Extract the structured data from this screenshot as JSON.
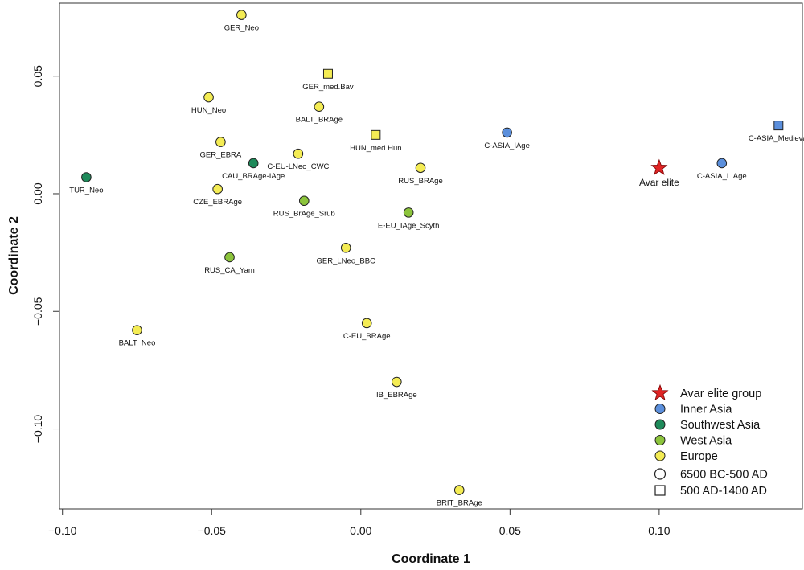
{
  "chart_data": {
    "type": "scatter",
    "xlabel": "Coordinate 1",
    "ylabel": "Coordinate 2",
    "xlim": [
      -0.101,
      0.148
    ],
    "ylim": [
      -0.134,
      0.081
    ],
    "xticks": [
      -0.1,
      -0.05,
      0.0,
      0.05,
      0.1
    ],
    "xtick_labels": [
      "−0.10",
      "−0.05",
      "0.00",
      "0.05",
      "0.10"
    ],
    "yticks": [
      -0.1,
      -0.05,
      0.0,
      0.05
    ],
    "ytick_labels": [
      "−0.10",
      "−0.05",
      "0.00",
      "0.05"
    ],
    "grid": false,
    "legend_position": "bottom-right",
    "groups": [
      {
        "name": "Avar elite group",
        "color": "#e02424",
        "shape": "star"
      },
      {
        "name": "Inner Asia",
        "color": "#5b8fdc",
        "shape": "circle"
      },
      {
        "name": "Southwest Asia",
        "color": "#1e8a5a",
        "shape": "circle"
      },
      {
        "name": "West Asia",
        "color": "#8cc43c",
        "shape": "circle"
      },
      {
        "name": "Europe",
        "color": "#f4ec54",
        "shape": "circle"
      }
    ],
    "period_legend": [
      {
        "label": "6500 BC-500 AD",
        "shape": "circle"
      },
      {
        "label": "500 AD-1400 AD",
        "shape": "square"
      }
    ],
    "points": [
      {
        "label": "GER_Neo",
        "x": -0.04,
        "y": 0.076,
        "group": "Europe",
        "shape": "circle"
      },
      {
        "label": "GER_med.Bav",
        "x": -0.011,
        "y": 0.051,
        "group": "Europe",
        "shape": "square"
      },
      {
        "label": "HUN_Neo",
        "x": -0.051,
        "y": 0.041,
        "group": "Europe",
        "shape": "circle"
      },
      {
        "label": "BALT_BRAge",
        "x": -0.014,
        "y": 0.037,
        "group": "Europe",
        "shape": "circle"
      },
      {
        "label": "HUN_med.Hun",
        "x": 0.005,
        "y": 0.025,
        "group": "Europe",
        "shape": "square"
      },
      {
        "label": "GER_EBRA",
        "x": -0.047,
        "y": 0.022,
        "group": "Europe",
        "shape": "circle"
      },
      {
        "label": "C-EU-LNeo_CWC",
        "x": -0.021,
        "y": 0.017,
        "group": "Europe",
        "shape": "circle"
      },
      {
        "label": "CAU_BRAge-IAge",
        "x": -0.036,
        "y": 0.013,
        "group": "Southwest Asia",
        "shape": "circle"
      },
      {
        "label": "TUR_Neo",
        "x": -0.092,
        "y": 0.007,
        "group": "Southwest Asia",
        "shape": "circle"
      },
      {
        "label": "CZE_EBRAge",
        "x": -0.048,
        "y": 0.002,
        "group": "Europe",
        "shape": "circle"
      },
      {
        "label": "RUS_BrAge_Srub",
        "x": -0.019,
        "y": -0.003,
        "group": "West Asia",
        "shape": "circle"
      },
      {
        "label": "RUS_BRAge",
        "x": 0.02,
        "y": 0.011,
        "group": "Europe",
        "shape": "circle"
      },
      {
        "label": "E-EU_IAge_Scyth",
        "x": 0.016,
        "y": -0.008,
        "group": "West Asia",
        "shape": "circle"
      },
      {
        "label": "GER_LNeo_BBC",
        "x": -0.005,
        "y": -0.023,
        "group": "Europe",
        "shape": "circle"
      },
      {
        "label": "RUS_CA_Yam",
        "x": -0.044,
        "y": -0.027,
        "group": "West Asia",
        "shape": "circle"
      },
      {
        "label": "BALT_Neo",
        "x": -0.075,
        "y": -0.058,
        "group": "Europe",
        "shape": "circle"
      },
      {
        "label": "C-EU_BRAge",
        "x": 0.002,
        "y": -0.055,
        "group": "Europe",
        "shape": "circle"
      },
      {
        "label": "IB_EBRAge",
        "x": 0.012,
        "y": -0.08,
        "group": "Europe",
        "shape": "circle"
      },
      {
        "label": "BRIT_BRAge",
        "x": 0.033,
        "y": -0.126,
        "group": "Europe",
        "shape": "circle"
      },
      {
        "label": "C-ASIA_IAge",
        "x": 0.049,
        "y": 0.026,
        "group": "Inner Asia",
        "shape": "circle"
      },
      {
        "label": "C-ASIA_Medieval",
        "x": 0.14,
        "y": 0.029,
        "group": "Inner Asia",
        "shape": "square"
      },
      {
        "label": "C-ASIA_LIAge",
        "x": 0.121,
        "y": 0.013,
        "group": "Inner Asia",
        "shape": "circle"
      },
      {
        "label": "Avar elite",
        "x": 0.1,
        "y": 0.011,
        "group": "Avar elite group",
        "shape": "star"
      }
    ]
  }
}
